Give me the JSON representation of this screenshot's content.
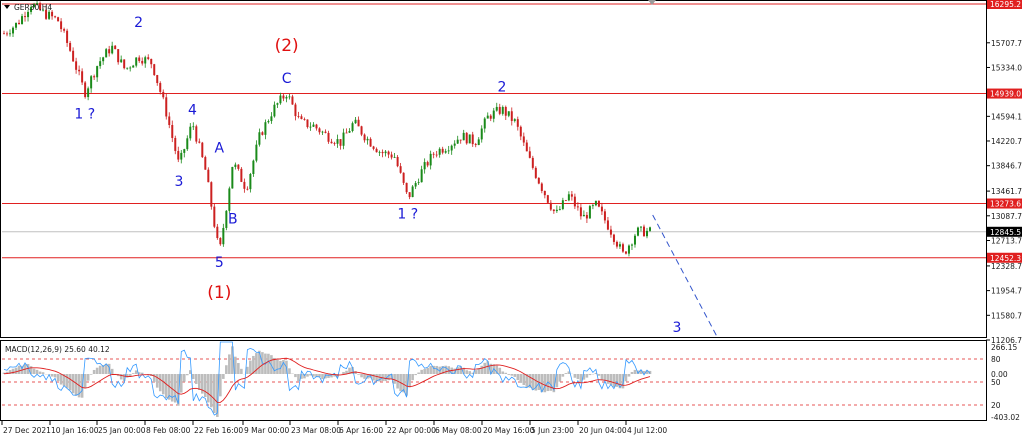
{
  "symbol_title": "GER30,H4",
  "price_axis_ticks": [
    "16295.2",
    "15707.7",
    "15334.0",
    "14939.0",
    "14594.1",
    "14220.7",
    "13846.7",
    "13461.7",
    "13087.7",
    "12713.7",
    "12328.7",
    "11954.7",
    "11580.7",
    "11206.7"
  ],
  "price_highlights": [
    {
      "label": "16295.2",
      "kind": "level",
      "price": 16295.2
    },
    {
      "label": "14939.0",
      "kind": "level",
      "price": 14939.0
    },
    {
      "label": "13273.6",
      "kind": "level",
      "price": 13273.6
    },
    {
      "label": "12845.5",
      "kind": "current",
      "price": 12845.5
    },
    {
      "label": "12452.3",
      "kind": "level",
      "price": 12452.3
    }
  ],
  "time_axis_ticks": [
    "27 Dec 2021",
    "10 Jan 16:00",
    "25 Jan 00:00",
    "8 Feb 08:00",
    "22 Feb 16:00",
    "9 Mar 00:00",
    "23 Mar 08:00",
    "6 Apr 16:00",
    "22 Apr 00:00",
    "6 May 08:00",
    "20 May 16:00",
    "5 Jun 23:00",
    "20 Jun 04:00",
    "4 Jul 12:00"
  ],
  "wave_labels": [
    {
      "text": "2",
      "color": "blue",
      "time_index": 10,
      "price": 15950
    },
    {
      "text": "1 ?",
      "color": "blue",
      "time_index": 6,
      "price": 14560
    },
    {
      "text": "4",
      "color": "blue",
      "time_index": 14,
      "price": 14620
    },
    {
      "text": "3",
      "color": "blue",
      "time_index": 13,
      "price": 13540
    },
    {
      "text": "A",
      "color": "blue",
      "time_index": 16,
      "price": 14050
    },
    {
      "text": "B",
      "color": "blue",
      "time_index": 17,
      "price": 12970
    },
    {
      "text": "5",
      "color": "blue",
      "time_index": 16,
      "price": 12310
    },
    {
      "text": "(1)",
      "color": "red",
      "time_index": 16,
      "price": 11840
    },
    {
      "text": "(2)",
      "color": "red",
      "time_index": 21,
      "price": 15580
    },
    {
      "text": "C",
      "color": "blue",
      "time_index": 21,
      "price": 15100
    },
    {
      "text": "1 ?",
      "color": "blue",
      "time_index": 30,
      "price": 13050
    },
    {
      "text": "2",
      "color": "blue",
      "time_index": 37,
      "price": 14970
    },
    {
      "text": "3",
      "color": "blue",
      "time_index": 50,
      "price": 11330
    }
  ],
  "macd": {
    "title": "MACD(12,26,9) 25.60 40.12",
    "axis_ticks": [
      "266.15",
      "80",
      "0.00",
      "50",
      "20",
      "-403.02"
    ]
  },
  "chart_data": {
    "type": "line",
    "title": "GER30,H4",
    "xlabel": "",
    "ylabel": "",
    "ylim": [
      11206.7,
      16295.2
    ],
    "x": [
      "27 Dec 2021",
      "10 Jan 16:00",
      "25 Jan 00:00",
      "8 Feb 08:00",
      "22 Feb 16:00",
      "9 Mar 00:00",
      "23 Mar 08:00",
      "6 Apr 16:00",
      "22 Apr 00:00",
      "6 May 08:00",
      "20 May 16:00",
      "5 Jun 23:00",
      "20 Jun 04:00",
      "4 Jul 12:00"
    ],
    "price_path": [
      {
        "t": 0,
        "p": 15850
      },
      {
        "t": 1,
        "p": 16000
      },
      {
        "t": 2,
        "p": 16300
      },
      {
        "t": 3,
        "p": 16150
      },
      {
        "t": 4,
        "p": 16050
      },
      {
        "t": 5,
        "p": 15550
      },
      {
        "t": 6,
        "p": 14950
      },
      {
        "t": 7,
        "p": 15400
      },
      {
        "t": 8,
        "p": 15650
      },
      {
        "t": 9,
        "p": 15300
      },
      {
        "t": 10,
        "p": 15500
      },
      {
        "t": 11,
        "p": 15400
      },
      {
        "t": 12,
        "p": 14700
      },
      {
        "t": 13,
        "p": 13850
      },
      {
        "t": 14,
        "p": 14500
      },
      {
        "t": 15,
        "p": 13750
      },
      {
        "t": 16,
        "p": 12500
      },
      {
        "t": 17,
        "p": 13900
      },
      {
        "t": 18,
        "p": 13500
      },
      {
        "t": 19,
        "p": 14300
      },
      {
        "t": 20,
        "p": 14700
      },
      {
        "t": 21,
        "p": 14950
      },
      {
        "t": 22,
        "p": 14500
      },
      {
        "t": 23,
        "p": 14450
      },
      {
        "t": 24,
        "p": 14300
      },
      {
        "t": 25,
        "p": 14200
      },
      {
        "t": 26,
        "p": 14500
      },
      {
        "t": 27,
        "p": 14250
      },
      {
        "t": 28,
        "p": 14050
      },
      {
        "t": 29,
        "p": 14000
      },
      {
        "t": 30,
        "p": 13350
      },
      {
        "t": 31,
        "p": 13750
      },
      {
        "t": 32,
        "p": 14050
      },
      {
        "t": 33,
        "p": 14150
      },
      {
        "t": 34,
        "p": 14300
      },
      {
        "t": 35,
        "p": 14200
      },
      {
        "t": 36,
        "p": 14600
      },
      {
        "t": 37,
        "p": 14700
      },
      {
        "t": 38,
        "p": 14500
      },
      {
        "t": 39,
        "p": 13950
      },
      {
        "t": 40,
        "p": 13500
      },
      {
        "t": 41,
        "p": 13100
      },
      {
        "t": 42,
        "p": 13400
      },
      {
        "t": 43,
        "p": 13050
      },
      {
        "t": 44,
        "p": 13250
      },
      {
        "t": 45,
        "p": 12900
      },
      {
        "t": 46,
        "p": 12500
      },
      {
        "t": 47,
        "p": 12850
      },
      {
        "t": 48,
        "p": 12845.5
      }
    ],
    "projection": {
      "from": {
        "t": 48.2,
        "p": 13100
      },
      "to": {
        "t": 53,
        "p": 11250
      },
      "style": "dashed",
      "color": "#3355cc"
    },
    "horizontal_levels": [
      16295.2,
      14939.0,
      13273.6,
      12452.3
    ],
    "current_price": 12845.5,
    "colors": {
      "bull": "#1a8a1a",
      "bear": "#cc2020",
      "levels": "#e02020",
      "macd_hist": "#bdbdbd",
      "macd_line": "#3399ff",
      "signal_line": "#e02020",
      "projection": "#3355cc"
    }
  }
}
